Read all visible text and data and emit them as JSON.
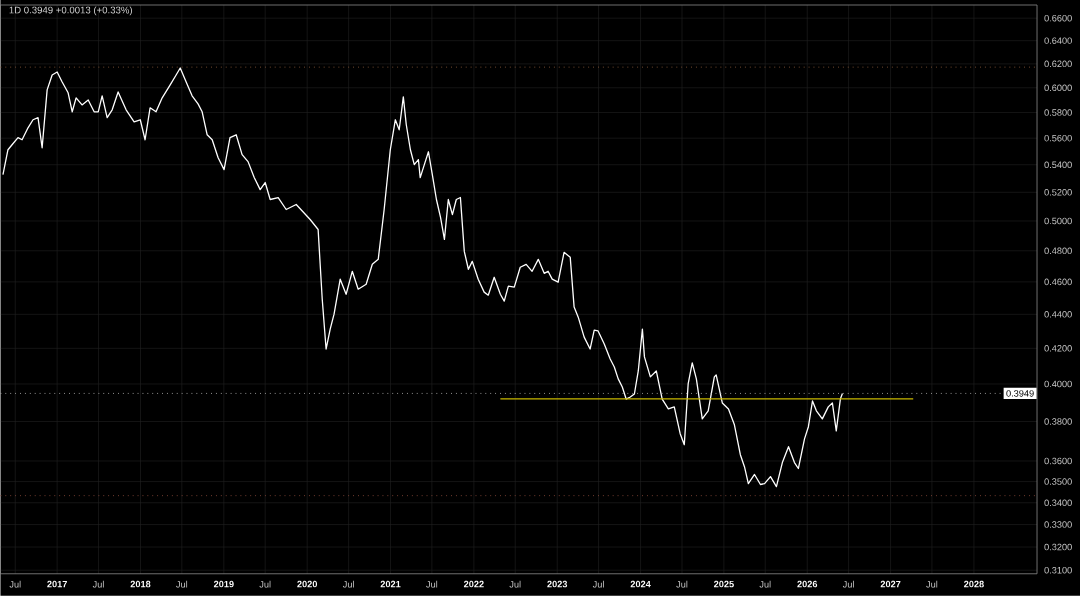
{
  "chart_data": {
    "type": "line",
    "title": "1D 0.3949 +0.0013 (+0.33%)",
    "x": [
      "2016-05-08",
      "2016-05-30",
      "2016-06-17",
      "2016-07-13",
      "2016-07-31",
      "2016-08-26",
      "2016-09-17",
      "2016-10-09",
      "2016-10-27",
      "2016-11-18",
      "2016-12-10",
      "2017-01-01",
      "2017-01-23",
      "2017-02-18",
      "2017-03-08",
      "2017-03-25",
      "2017-04-20",
      "2017-05-17",
      "2017-06-12",
      "2017-06-30",
      "2017-07-17",
      "2017-08-08",
      "2017-08-30",
      "2017-09-25",
      "2017-10-30",
      "2017-12-04",
      "2017-12-31",
      "2018-01-21",
      "2018-02-12",
      "2018-03-10",
      "2018-04-06",
      "2018-05-11",
      "2018-06-06",
      "2018-06-24",
      "2018-07-20",
      "2018-08-15",
      "2018-09-10",
      "2018-09-28",
      "2018-10-20",
      "2018-11-11",
      "2018-12-07",
      "2019-01-02",
      "2019-01-28",
      "2019-02-24",
      "2019-03-22",
      "2019-04-17",
      "2019-05-14",
      "2019-06-09",
      "2019-07-01",
      "2019-07-23",
      "2019-08-27",
      "2019-10-01",
      "2019-11-14",
      "2020-01-14",
      "2020-02-18",
      "2020-03-07",
      "2020-03-24",
      "2020-04-11",
      "2020-04-28",
      "2020-05-25",
      "2020-06-20",
      "2020-07-17",
      "2020-08-12",
      "2020-09-16",
      "2020-10-13",
      "2020-11-08",
      "2020-12-04",
      "2020-12-31",
      "2021-01-22",
      "2021-02-08",
      "2021-02-26",
      "2021-03-11",
      "2021-03-29",
      "2021-04-15",
      "2021-05-03",
      "2021-05-11",
      "2021-05-29",
      "2021-06-16",
      "2021-07-03",
      "2021-07-21",
      "2021-08-08",
      "2021-08-25",
      "2021-09-11",
      "2021-09-29",
      "2021-10-16",
      "2021-11-03",
      "2021-11-20",
      "2021-12-08",
      "2021-12-25",
      "2022-01-20",
      "2022-02-15",
      "2022-03-05",
      "2022-03-31",
      "2022-04-27",
      "2022-05-14",
      "2022-06-01",
      "2022-06-27",
      "2022-07-23",
      "2022-08-18",
      "2022-09-13",
      "2022-10-10",
      "2022-11-05",
      "2022-11-22",
      "2022-12-10",
      "2023-01-05",
      "2023-01-31",
      "2023-02-27",
      "2023-03-16",
      "2023-04-03",
      "2023-04-29",
      "2023-05-25",
      "2023-06-12",
      "2023-06-29",
      "2023-07-26",
      "2023-08-21",
      "2023-09-08",
      "2023-09-25",
      "2023-10-13",
      "2023-10-30",
      "2023-11-17",
      "2023-12-05",
      "2023-12-22",
      "2024-01-09",
      "2024-01-18",
      "2024-02-13",
      "2024-03-10",
      "2024-04-05",
      "2024-05-02",
      "2024-05-28",
      "2024-06-23",
      "2024-07-11",
      "2024-07-28",
      "2024-08-15",
      "2024-09-02",
      "2024-09-28",
      "2024-10-24",
      "2024-11-20",
      "2024-11-28",
      "2024-12-25",
      "2025-01-21",
      "2025-02-16",
      "2025-03-14",
      "2025-04-01",
      "2025-04-18",
      "2025-05-15",
      "2025-06-10",
      "2025-06-28",
      "2025-07-24",
      "2025-08-19",
      "2025-09-14",
      "2025-10-11",
      "2025-11-06",
      "2025-11-23",
      "2025-12-20",
      "2026-01-06",
      "2026-01-24",
      "2026-02-10",
      "2026-03-08",
      "2026-04-03",
      "2026-04-21",
      "2026-05-08",
      "2026-05-26",
      "2026-06-04"
    ],
    "series": [
      {
        "color": "#ffffff",
        "values": [
          0.5328,
          0.5512,
          0.555,
          0.5604,
          0.5588,
          0.568,
          0.5743,
          0.5759,
          0.5527,
          0.5983,
          0.6106,
          0.6131,
          0.6048,
          0.5959,
          0.5806,
          0.5918,
          0.5861,
          0.5901,
          0.5806,
          0.5806,
          0.5934,
          0.5759,
          0.5822,
          0.5966,
          0.5822,
          0.5727,
          0.5743,
          0.5588,
          0.5838,
          0.5806,
          0.5918,
          0.6024,
          0.6106,
          0.6165,
          0.6048,
          0.5934,
          0.5869,
          0.5806,
          0.5626,
          0.5588,
          0.5452,
          0.5364,
          0.5604,
          0.5626,
          0.5475,
          0.5423,
          0.5306,
          0.5219,
          0.527,
          0.5149,
          0.5163,
          0.5079,
          0.5114,
          0.501,
          0.4942,
          0.4493,
          0.4196,
          0.4312,
          0.4401,
          0.4617,
          0.4523,
          0.4667,
          0.4554,
          0.4585,
          0.4712,
          0.4744,
          0.5079,
          0.5512,
          0.5743,
          0.5665,
          0.5926,
          0.5704,
          0.5512,
          0.5401,
          0.5438,
          0.5306,
          0.5401,
          0.5497,
          0.5328,
          0.5149,
          0.5024,
          0.4875,
          0.5149,
          0.5044,
          0.5149,
          0.5163,
          0.4796,
          0.468,
          0.4731,
          0.4617,
          0.4536,
          0.4517,
          0.4629,
          0.4523,
          0.448,
          0.4573,
          0.4567,
          0.4693,
          0.4712,
          0.4667,
          0.4744,
          0.4654,
          0.4667,
          0.4617,
          0.4598,
          0.479,
          0.4757,
          0.4444,
          0.4383,
          0.4265,
          0.4196,
          0.4306,
          0.4301,
          0.4225,
          0.4139,
          0.4094,
          0.4028,
          0.3984,
          0.3919,
          0.393,
          0.3946,
          0.4072,
          0.4312,
          0.4151,
          0.4039,
          0.4072,
          0.3919,
          0.3866,
          0.3877,
          0.3737,
          0.3681,
          0.4,
          0.4117,
          0.4028,
          0.3814,
          0.3856,
          0.4039,
          0.405,
          0.3898,
          0.3866,
          0.3783,
          0.3631,
          0.3572,
          0.349,
          0.3534,
          0.3486,
          0.349,
          0.3524,
          0.3476,
          0.3592,
          0.3671,
          0.3592,
          0.3563,
          0.3711,
          0.3773,
          0.3909,
          0.3856,
          0.3814,
          0.3877,
          0.3898,
          0.3752,
          0.3919,
          0.3949
        ]
      },
      {
        "type": "line",
        "color": "#c9b800",
        "x": [
          "2022-04-27",
          "2027-04-10"
        ],
        "values": [
          0.392,
          0.392
        ]
      }
    ],
    "xlim": [
      "2016-04-27",
      "2028-10-04"
    ],
    "ylim": [
      0.3085,
      0.672
    ],
    "xticks": [
      {
        "value": "2016-07",
        "label": "Jul"
      },
      {
        "value": "2017",
        "label": "2017"
      },
      {
        "value": "2017-07",
        "label": "Jul"
      },
      {
        "value": "2018",
        "label": "2018"
      },
      {
        "value": "2018-07",
        "label": "Jul"
      },
      {
        "value": "2019",
        "label": "2019"
      },
      {
        "value": "2019-07",
        "label": "Jul"
      },
      {
        "value": "2020",
        "label": "2020"
      },
      {
        "value": "2020-07",
        "label": "Jul"
      },
      {
        "value": "2021",
        "label": "2021"
      },
      {
        "value": "2021-07",
        "label": "Jul"
      },
      {
        "value": "2022",
        "label": "2022"
      },
      {
        "value": "2022-07",
        "label": "Jul"
      },
      {
        "value": "2023",
        "label": "2023"
      },
      {
        "value": "2023-07",
        "label": "Jul"
      },
      {
        "value": "2024",
        "label": "2024"
      },
      {
        "value": "2024-07",
        "label": "Jul"
      },
      {
        "value": "2025",
        "label": "2025"
      },
      {
        "value": "2025-07",
        "label": "Jul"
      },
      {
        "value": "2026",
        "label": "2026"
      },
      {
        "value": "2026-07",
        "label": "Jul"
      },
      {
        "value": "2027",
        "label": "2027"
      },
      {
        "value": "2027-07",
        "label": "Jul"
      },
      {
        "value": "2028",
        "label": "2028"
      }
    ],
    "yticks": [
      {
        "value": 0.66,
        "label": "0.6600"
      },
      {
        "value": 0.64,
        "label": "0.6400"
      },
      {
        "value": 0.62,
        "label": "0.6200"
      },
      {
        "value": 0.6,
        "label": "0.6000"
      },
      {
        "value": 0.58,
        "label": "0.5800"
      },
      {
        "value": 0.56,
        "label": "0.5600"
      },
      {
        "value": 0.54,
        "label": "0.5400"
      },
      {
        "value": 0.52,
        "label": "0.5200"
      },
      {
        "value": 0.5,
        "label": "0.5000"
      },
      {
        "value": 0.48,
        "label": "0.4800"
      },
      {
        "value": 0.46,
        "label": "0.4600"
      },
      {
        "value": 0.44,
        "label": "0.4400"
      },
      {
        "value": 0.42,
        "label": "0.4200"
      },
      {
        "value": 0.4,
        "label": "0.4000"
      },
      {
        "value": 0.38,
        "label": "0.3800"
      },
      {
        "value": 0.36,
        "label": "0.3600"
      },
      {
        "value": 0.35,
        "label": "0.3500"
      },
      {
        "value": 0.34,
        "label": "0.3400"
      },
      {
        "value": 0.33,
        "label": "0.3300"
      },
      {
        "value": 0.32,
        "label": "0.3200"
      },
      {
        "value": 0.31,
        "label": "0.3100"
      }
    ],
    "log": "y",
    "grid": true,
    "ref_lines": [
      {
        "axis": "y",
        "value": 0.6172,
        "color": "#8a5a3a",
        "line_style": "dotted"
      },
      {
        "axis": "y",
        "value": 0.3949,
        "label": "0.3949",
        "color": "#b0b0b0",
        "line_style": "dotted"
      },
      {
        "axis": "y",
        "value": 0.3433,
        "color": "#8a4a3a",
        "line_style": "dotted"
      }
    ]
  }
}
